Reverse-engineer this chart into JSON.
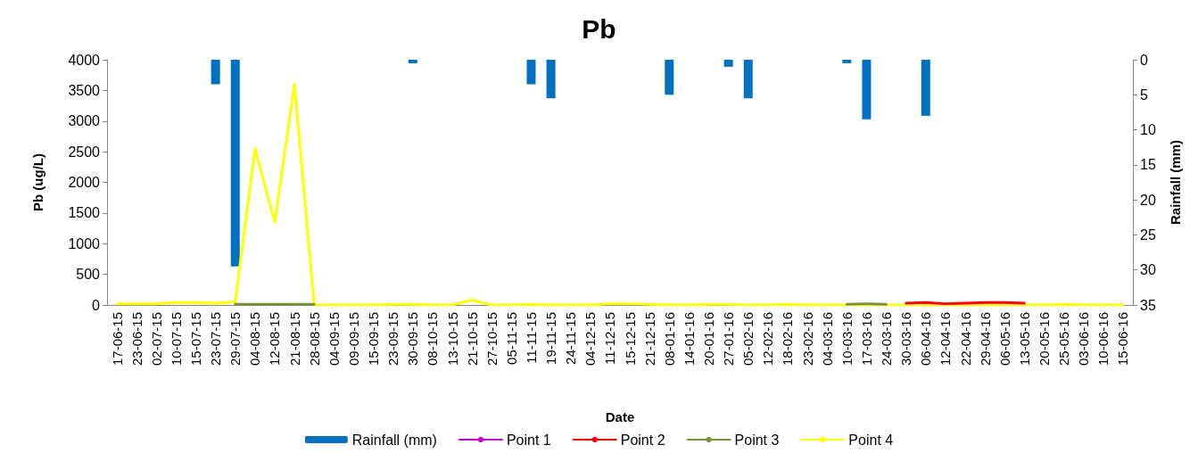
{
  "chart_data": {
    "type": "line",
    "title": "Pb",
    "xlabel": "Date",
    "ylabel": "Pb (ug/L)",
    "y2label": "Rainfall (mm)",
    "categories": [
      "17-06-15",
      "23-06-15",
      "02-07-15",
      "10-07-15",
      "15-07-15",
      "23-07-15",
      "29-07-15",
      "04-08-15",
      "12-08-15",
      "21-08-15",
      "28-08-15",
      "04-09-15",
      "09-09-15",
      "15-09-15",
      "23-09-15",
      "30-09-15",
      "08-10-15",
      "13-10-15",
      "21-10-15",
      "27-10-15",
      "05-11-15",
      "11-11-15",
      "19-11-15",
      "24-11-15",
      "04-12-15",
      "11-12-15",
      "15-12-15",
      "21-12-15",
      "08-01-16",
      "14-01-16",
      "20-01-16",
      "27-01-16",
      "05-02-16",
      "12-02-16",
      "18-02-16",
      "23-02-16",
      "04-03-16",
      "10-03-16",
      "17-03-16",
      "24-03-16",
      "30-03-16",
      "06-04-16",
      "12-04-16",
      "22-04-16",
      "29-04-16",
      "06-05-16",
      "13-05-16",
      "20-05-16",
      "25-05-16",
      "03-06-16",
      "10-06-16",
      "15-06-16"
    ],
    "series": [
      {
        "name": "Rainfall (mm)",
        "type": "bar",
        "axis": "y2",
        "color": "#0070c0",
        "values": [
          0,
          0,
          0,
          0,
          0,
          3.5,
          29.5,
          0,
          0,
          0,
          0,
          0,
          0,
          0,
          0,
          0.5,
          0,
          0,
          0,
          0,
          0,
          3.5,
          5.5,
          0,
          0,
          0,
          0,
          0,
          5,
          0,
          0,
          1,
          5.5,
          0,
          0,
          0,
          0,
          0.5,
          8.5,
          0,
          0,
          8,
          0,
          0,
          0,
          0,
          0,
          0,
          0,
          0,
          0,
          0
        ]
      },
      {
        "name": "Point 1",
        "color": "#cc00cc",
        "values": [
          null,
          null,
          null,
          null,
          null,
          null,
          null,
          null,
          null,
          null,
          null,
          null,
          null,
          null,
          null,
          null,
          null,
          null,
          null,
          null,
          null,
          null,
          null,
          null,
          null,
          null,
          null,
          null,
          null,
          null,
          null,
          null,
          null,
          null,
          null,
          null,
          null,
          null,
          null,
          null,
          null,
          null,
          null,
          null,
          null,
          null,
          null,
          null,
          null,
          null,
          null,
          null
        ]
      },
      {
        "name": "Point 2",
        "color": "#ff0000",
        "values": [
          null,
          null,
          null,
          null,
          null,
          null,
          null,
          null,
          null,
          null,
          null,
          null,
          null,
          null,
          null,
          null,
          null,
          null,
          null,
          null,
          null,
          null,
          null,
          null,
          null,
          null,
          null,
          null,
          null,
          null,
          null,
          null,
          null,
          null,
          null,
          null,
          null,
          null,
          null,
          null,
          30,
          40,
          20,
          30,
          40,
          40,
          30,
          null,
          null,
          null,
          null,
          null
        ]
      },
      {
        "name": "Point 3",
        "color": "#77933c",
        "values": [
          null,
          null,
          null,
          null,
          null,
          null,
          10,
          10,
          10,
          10,
          10,
          null,
          null,
          null,
          null,
          null,
          null,
          null,
          null,
          null,
          null,
          null,
          null,
          null,
          null,
          null,
          null,
          null,
          null,
          null,
          null,
          null,
          null,
          null,
          null,
          null,
          null,
          10,
          20,
          10,
          null,
          null,
          null,
          null,
          null,
          null,
          null,
          null,
          null,
          null,
          null,
          null
        ]
      },
      {
        "name": "Point 4",
        "color": "#ffff00",
        "values": [
          20,
          20,
          20,
          40,
          40,
          30,
          50,
          2550,
          1350,
          3600,
          0,
          0,
          0,
          0,
          10,
          10,
          0,
          0,
          80,
          0,
          0,
          10,
          0,
          0,
          0,
          20,
          20,
          10,
          0,
          0,
          10,
          10,
          0,
          0,
          10,
          0,
          0,
          0,
          0,
          0,
          0,
          0,
          0,
          0,
          0,
          0,
          0,
          0,
          10,
          0,
          0,
          0
        ]
      }
    ],
    "ylim": [
      0,
      4000
    ],
    "yticks": [
      0,
      500,
      1000,
      1500,
      2000,
      2500,
      3000,
      3500,
      4000
    ],
    "y2lim": [
      35,
      0
    ],
    "y2ticks": [
      0,
      5,
      10,
      15,
      20,
      25,
      30,
      35
    ],
    "legend": "bottom",
    "marker": "none",
    "line_style": "solid",
    "grid": false
  }
}
